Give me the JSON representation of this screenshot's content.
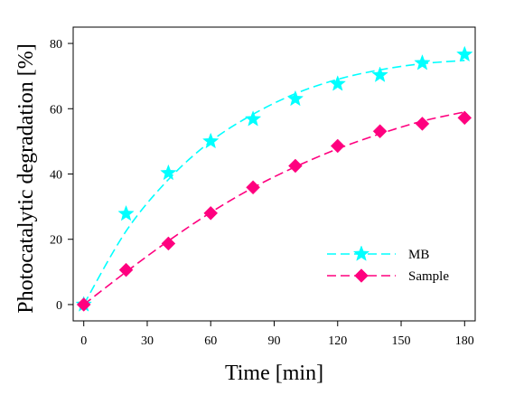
{
  "chart_data": {
    "type": "line",
    "xlabel": "Time [min]",
    "ylabel": "Photocatalytic degradation [%]",
    "xlim": [
      -5,
      185
    ],
    "ylim": [
      -5,
      85
    ],
    "xticks": [
      0,
      30,
      60,
      90,
      120,
      150,
      180
    ],
    "yticks": [
      0,
      20,
      40,
      60,
      80
    ],
    "grid": false,
    "legend_position": "lower-right",
    "series": [
      {
        "name": "MB",
        "color": "#00ffff",
        "marker": "star",
        "line_style": "dashed-fit",
        "x": [
          0,
          20,
          40,
          60,
          80,
          100,
          120,
          140,
          160,
          180
        ],
        "values": [
          0,
          27.8,
          40.3,
          50.0,
          56.8,
          63.0,
          67.6,
          70.3,
          74.0,
          76.6
        ],
        "fit_values": [
          0,
          22.5,
          38.3,
          50.0,
          58.3,
          64.6,
          69.0,
          71.9,
          73.8,
          74.8
        ]
      },
      {
        "name": "Sample",
        "color": "#ff007f",
        "marker": "diamond",
        "line_style": "dashed-fit",
        "x": [
          0,
          20,
          40,
          60,
          80,
          100,
          120,
          140,
          160,
          180
        ],
        "values": [
          0,
          10.6,
          18.7,
          28.0,
          35.9,
          42.5,
          48.6,
          53.1,
          55.4,
          57.2
        ],
        "fit_values": [
          0,
          10.0,
          19.5,
          28.2,
          35.8,
          42.2,
          47.7,
          52.3,
          56.2,
          59.0
        ]
      }
    ]
  }
}
